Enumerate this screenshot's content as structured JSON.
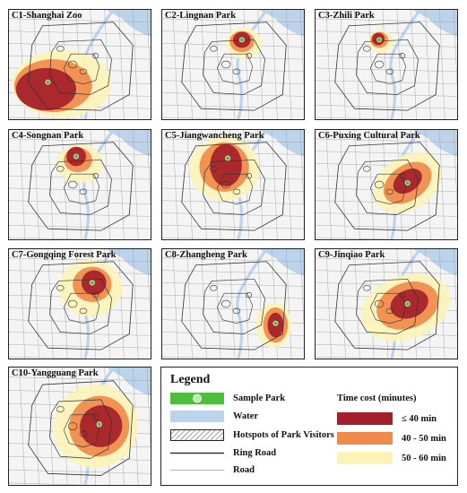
{
  "panels": [
    {
      "title": "C1-Shanghai Zoo"
    },
    {
      "title": "C2-Lingnan Park"
    },
    {
      "title": "C3-Zhili Park"
    },
    {
      "title": "C4-Songnan Park"
    },
    {
      "title": "C5-Jiangwancheng Park"
    },
    {
      "title": "C6-Puxing Cultural Park"
    },
    {
      "title": "C7-Gongqing Forest Park"
    },
    {
      "title": "C8-Zhangheng Park"
    },
    {
      "title": "C9-Jinqiao Park"
    },
    {
      "title": "C10-Yangguang Park"
    }
  ],
  "legend": {
    "title": "Legend",
    "items": [
      {
        "label": "Sample Park",
        "icon": "sample-park-symbol"
      },
      {
        "label": "Water",
        "icon": "water-symbol"
      },
      {
        "label": "Hotspots of Park Visitors",
        "icon": "hatched-hotspot-symbol"
      },
      {
        "label": "Ring Road",
        "icon": "ring-road-line"
      },
      {
        "label": "Road",
        "icon": "road-line"
      }
    ],
    "time_cost": {
      "title": "Time cost  (minutes)",
      "classes": [
        {
          "label": "≤  40 min",
          "color": "#a3202a"
        },
        {
          "label": "40 - 50 min",
          "color": "#ef8a4a"
        },
        {
          "label": "50 - 60 min",
          "color": "#fbf3b8"
        }
      ]
    }
  },
  "colors": {
    "water": "#bcd3ec",
    "sample_park": "#4fbd3c",
    "ring_road": "#333333",
    "road": "#9a9a9a",
    "panel_bg": "#f4f4f4"
  }
}
